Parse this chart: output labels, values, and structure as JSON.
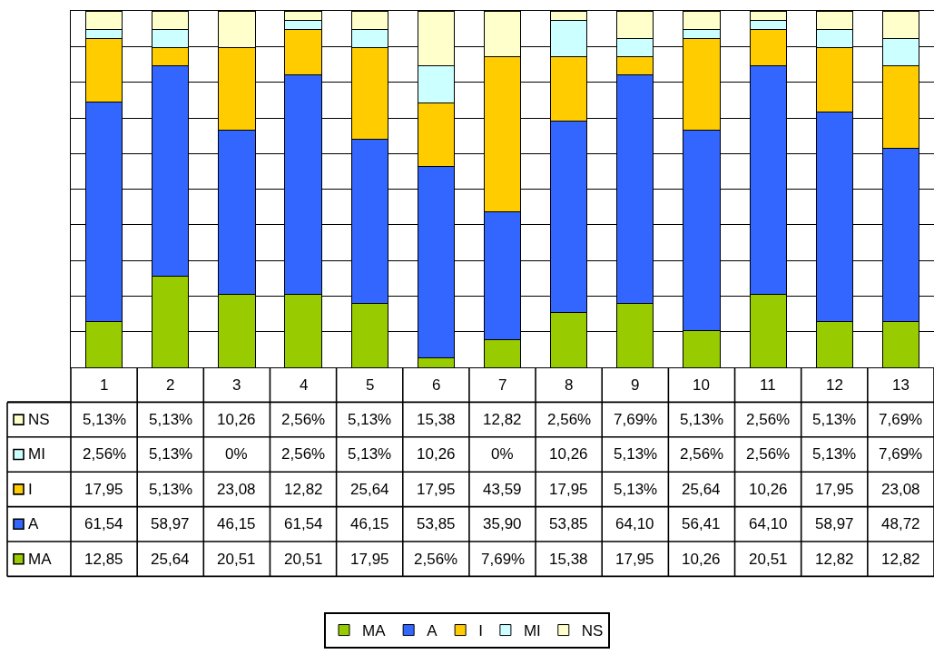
{
  "chart_data": {
    "type": "bar",
    "stacked": true,
    "categories": [
      "1",
      "2",
      "3",
      "4",
      "5",
      "6",
      "7",
      "8",
      "9",
      "10",
      "11",
      "12",
      "13"
    ],
    "ylim": [
      0,
      100.1
    ],
    "yticks": [
      {
        "value": 10,
        "label": null
      },
      {
        "value": 20,
        "label": null
      },
      {
        "value": 30,
        "label": null
      },
      {
        "value": 40,
        "label": null
      },
      {
        "value": 50,
        "label": null
      },
      {
        "value": 60,
        "label": null
      },
      {
        "value": 70,
        "label": null
      },
      {
        "value": 80,
        "label": null
      },
      {
        "value": 90,
        "label": null
      },
      {
        "value": 100,
        "label": null
      }
    ],
    "grid": "y",
    "legend": "bottom",
    "tick_labels": "x",
    "series": [
      {
        "name": "MA",
        "color": "#99cc00",
        "values": [
          12.85,
          25.64,
          20.51,
          20.51,
          17.95,
          2.56,
          7.69,
          15.38,
          17.95,
          10.26,
          20.51,
          12.82,
          12.82
        ],
        "value_labels": [
          "12,85",
          "25,64",
          "20,51",
          "20,51",
          "17,95",
          "2,56%",
          "7,69%",
          "15,38",
          "17,95",
          "10,26",
          "20,51",
          "12,82",
          "12,82"
        ]
      },
      {
        "name": "A",
        "color": "#3366ff",
        "values": [
          61.54,
          58.97,
          46.15,
          61.54,
          46.15,
          53.85,
          35.9,
          53.85,
          64.1,
          56.41,
          64.1,
          58.97,
          48.72
        ],
        "value_labels": [
          "61,54",
          "58,97",
          "46,15",
          "61,54",
          "46,15",
          "53,85",
          "35,90",
          "53,85",
          "64,10",
          "56,41",
          "64,10",
          "58,97",
          "48,72"
        ]
      },
      {
        "name": "I",
        "color": "#ffcc00",
        "values": [
          17.95,
          5.13,
          23.08,
          12.82,
          25.64,
          17.95,
          43.59,
          17.95,
          5.13,
          25.64,
          10.26,
          17.95,
          23.08
        ],
        "value_labels": [
          "17,95",
          "5,13%",
          "23,08",
          "12,82",
          "25,64",
          "17,95",
          "43,59",
          "17,95",
          "5,13%",
          "25,64",
          "10,26",
          "17,95",
          "23,08"
        ]
      },
      {
        "name": "MI",
        "color": "#ccffff",
        "values": [
          2.56,
          5.13,
          0,
          2.56,
          5.13,
          10.26,
          0,
          10.26,
          5.13,
          2.56,
          2.56,
          5.13,
          7.69
        ],
        "value_labels": [
          "2,56%",
          "5,13%",
          "0%",
          "2,56%",
          "5,13%",
          "10,26",
          "0%",
          "10,26",
          "5,13%",
          "2,56%",
          "2,56%",
          "5,13%",
          "7,69%"
        ]
      },
      {
        "name": "NS",
        "color": "#ffffcc",
        "values": [
          5.13,
          5.13,
          10.26,
          2.56,
          5.13,
          15.38,
          12.82,
          2.56,
          7.69,
          5.13,
          2.56,
          5.13,
          7.69
        ],
        "value_labels": [
          "5,13%",
          "5,13%",
          "10,26",
          "2,56%",
          "5,13%",
          "15,38",
          "12,82",
          "2,56%",
          "7,69%",
          "5,13%",
          "2,56%",
          "5,13%",
          "7,69%"
        ]
      }
    ]
  }
}
